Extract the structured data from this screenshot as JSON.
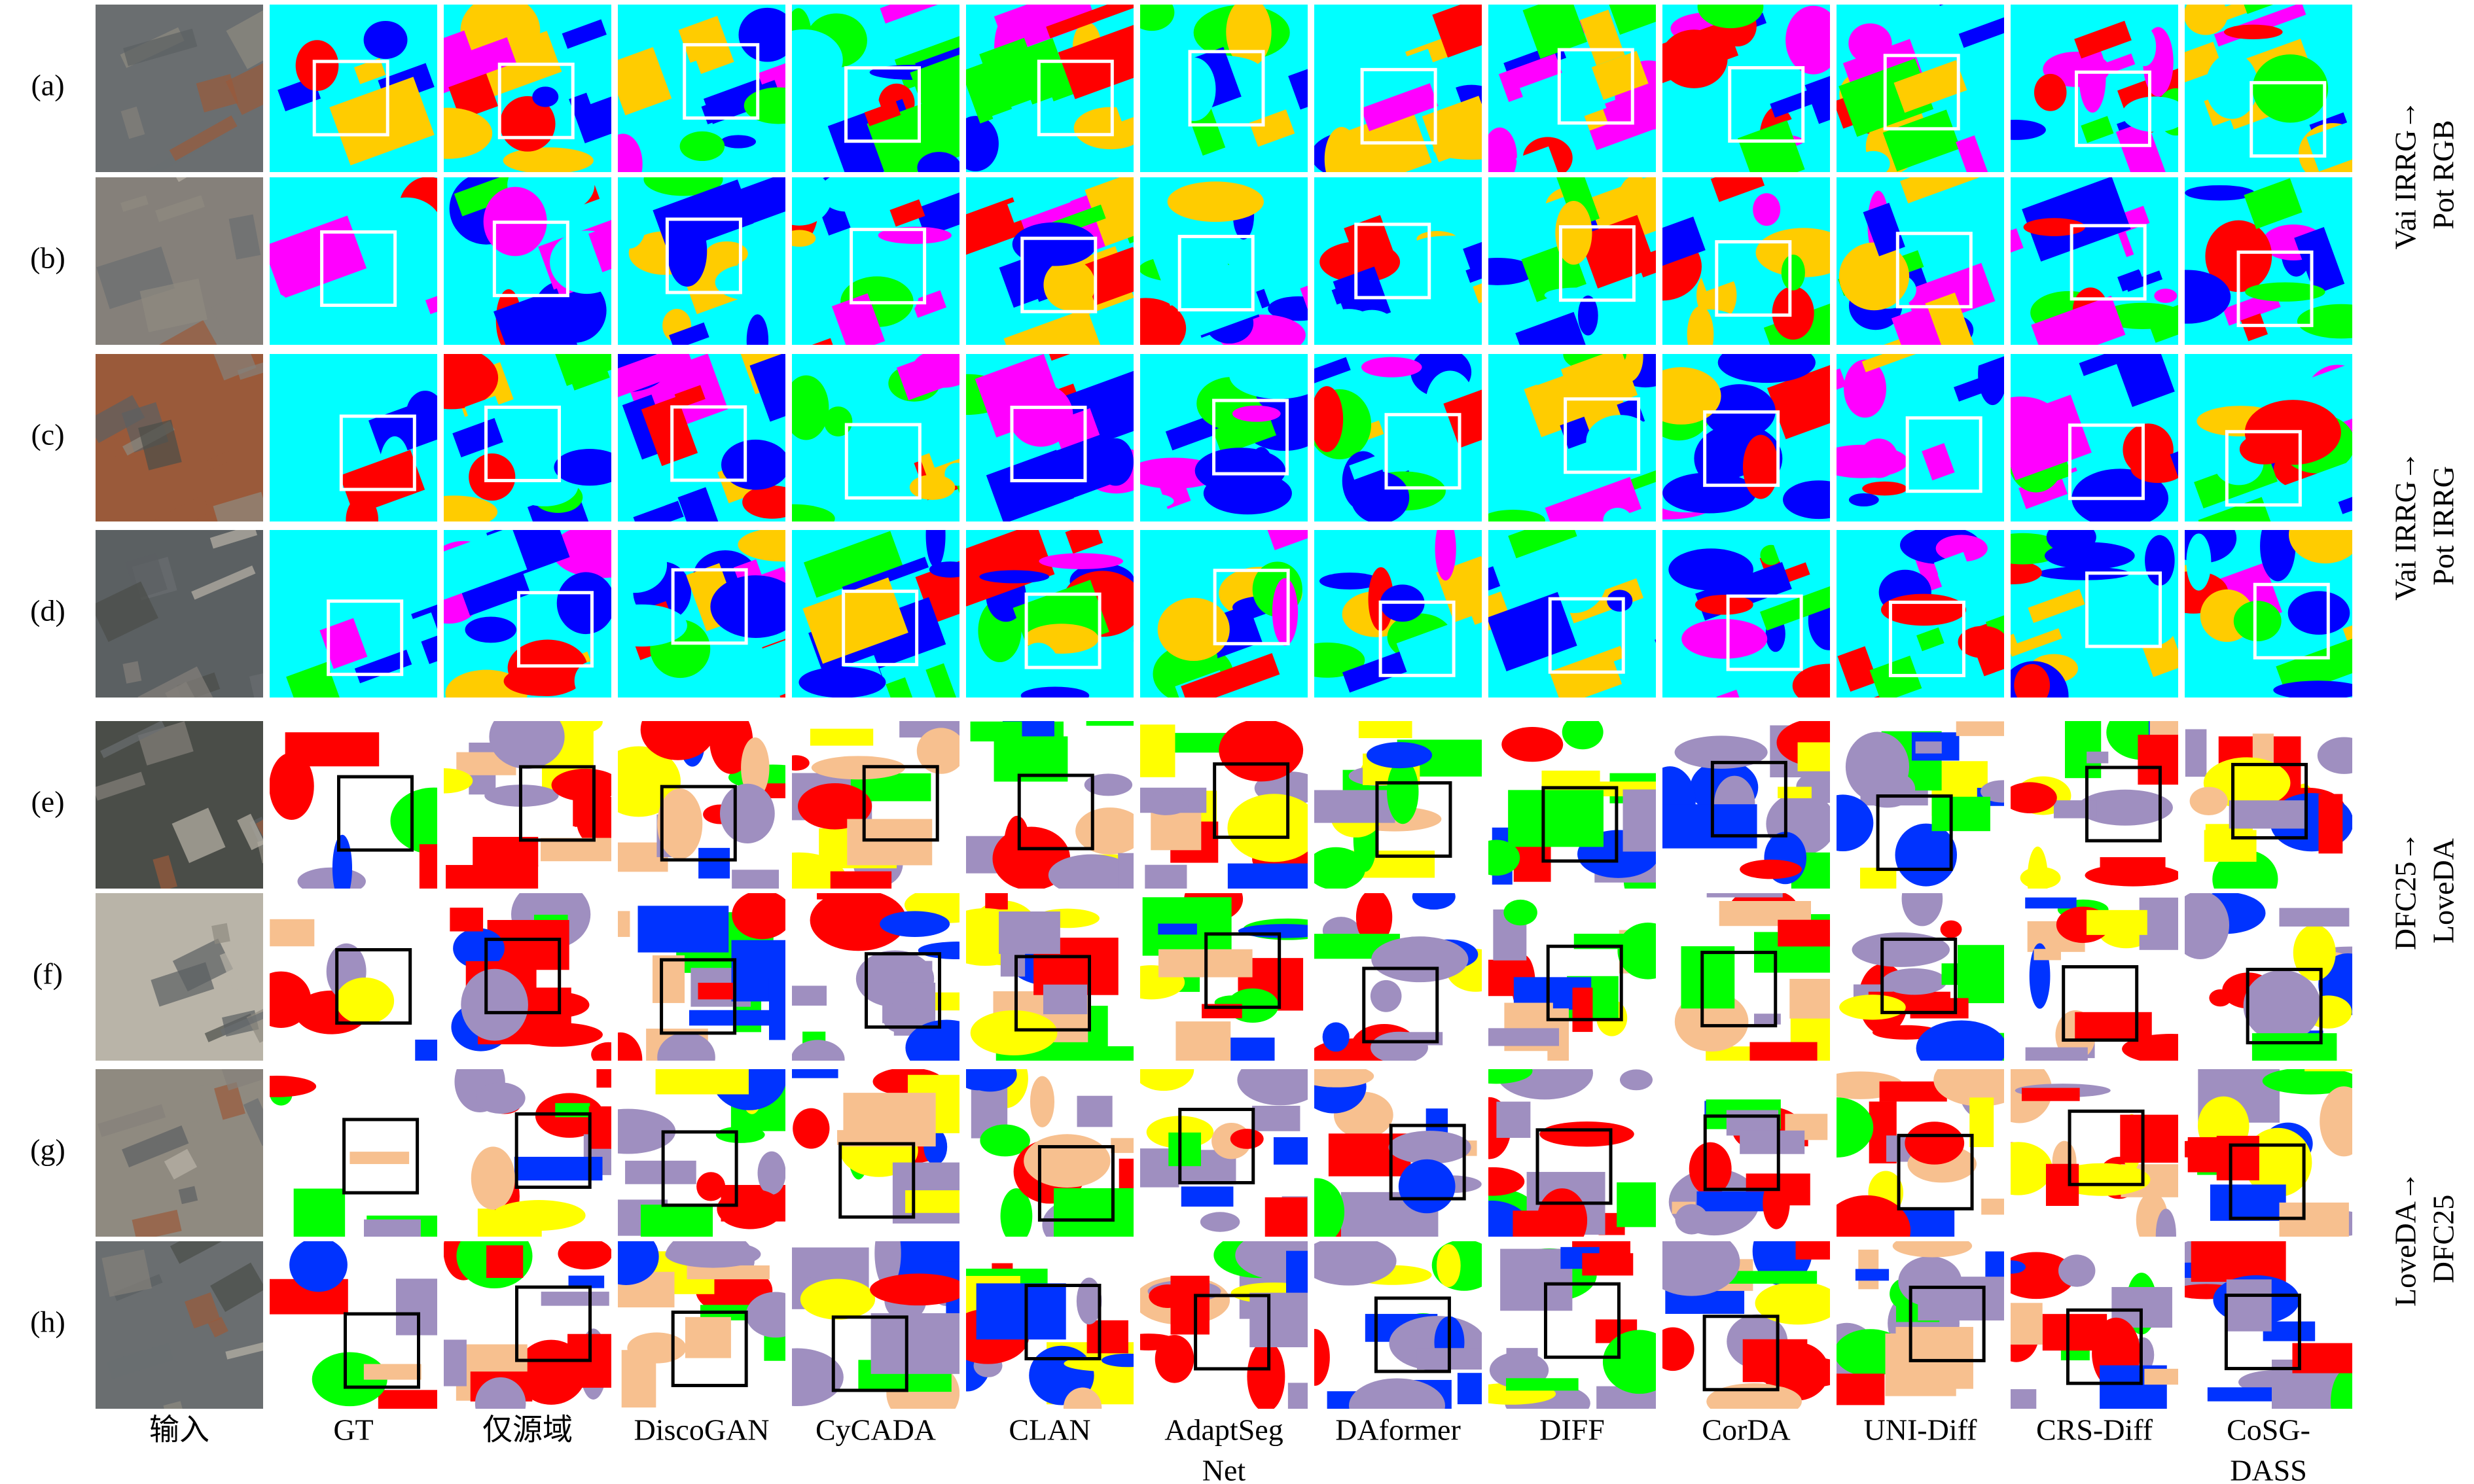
{
  "row_labels": [
    "(a)",
    "(b)",
    "(c)",
    "(d)",
    "(e)",
    "(f)",
    "(g)",
    "(h)"
  ],
  "column_labels": [
    [
      "输入"
    ],
    [
      "GT"
    ],
    [
      "仅源域"
    ],
    [
      "DiscoGAN"
    ],
    [
      "CyCADA"
    ],
    [
      "CLAN"
    ],
    [
      "AdaptSeg",
      "Net"
    ],
    [
      "DAformer"
    ],
    [
      "DIFF"
    ],
    [
      "CorDA"
    ],
    [
      "UNI-Diff"
    ],
    [
      "CRS-Diff"
    ],
    [
      "CoSG-",
      "DASS"
    ]
  ],
  "side_labels": [
    [
      "Vai IRRG→",
      "Pot RGB"
    ],
    [
      "Vai IRRG→",
      "Pot IRRG"
    ],
    [
      "DFC25→",
      "LoveDA"
    ],
    [
      "LoveDA→",
      "DFC25"
    ]
  ]
}
